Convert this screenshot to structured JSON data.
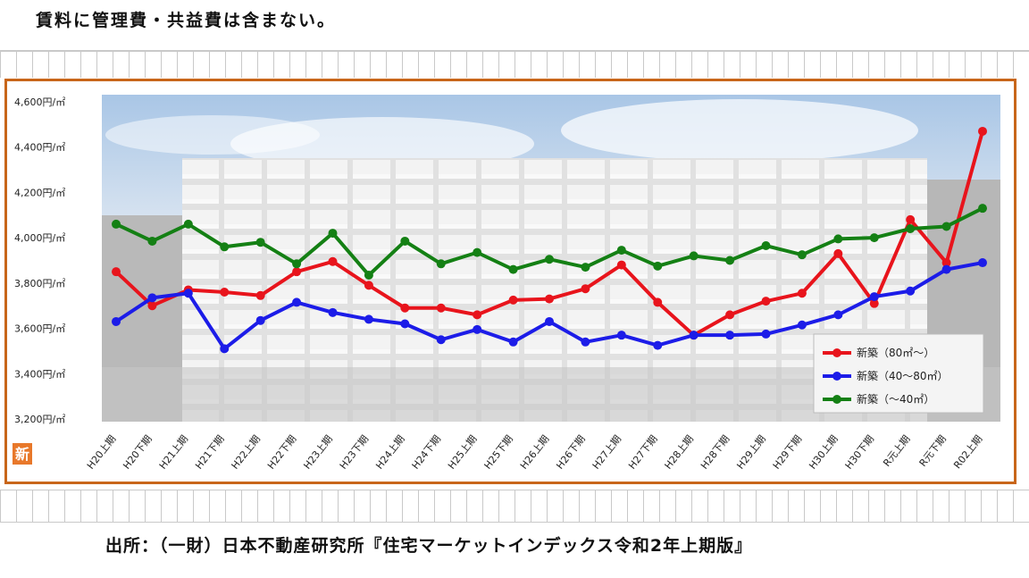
{
  "note": "賃料に管理費・共益費は含まない。",
  "source": "出所：（一財）日本不動産研究所『住宅マーケットインデックス令和2年上期版』",
  "logo_text": "新",
  "colors": {
    "frame": "#c8661a",
    "red": "#e8141c",
    "blue": "#1c1ce8",
    "green": "#148014"
  },
  "chart_data": {
    "type": "line",
    "categories": [
      "H20上期",
      "H20下期",
      "H21上期",
      "H21下期",
      "H22上期",
      "H22下期",
      "H23上期",
      "H23下期",
      "H24上期",
      "H24下期",
      "H25上期",
      "H25下期",
      "H26上期",
      "H26下期",
      "H27上期",
      "H27下期",
      "H28上期",
      "H28下期",
      "H29上期",
      "H29下期",
      "H30上期",
      "H30下期",
      "R元上期",
      "R元下期",
      "R02上期"
    ],
    "ylim": [
      3200,
      4600
    ],
    "yticks": [
      {
        "value": 4600,
        "label": "4,600円/㎡"
      },
      {
        "value": 4400,
        "label": "4,400円/㎡"
      },
      {
        "value": 4200,
        "label": "4,200円/㎡"
      },
      {
        "value": 4000,
        "label": "4,000円/㎡"
      },
      {
        "value": 3800,
        "label": "3,800円/㎡"
      },
      {
        "value": 3600,
        "label": "3,600円/㎡"
      },
      {
        "value": 3400,
        "label": "3,400円/㎡"
      },
      {
        "value": 3200,
        "label": "3,200円/㎡"
      }
    ],
    "legend_position": "bottom-right",
    "series": [
      {
        "name": "新築（80㎡～）",
        "color": "#e8141c",
        "values": [
          3850,
          3700,
          3770,
          3760,
          3745,
          3850,
          3895,
          3790,
          3690,
          3690,
          3660,
          3725,
          3730,
          3775,
          3880,
          3715,
          3570,
          3660,
          3720,
          3755,
          3930,
          3710,
          4080,
          3890,
          4470
        ]
      },
      {
        "name": "新築（40～80㎡）",
        "color": "#1c1ce8",
        "values": [
          3630,
          3735,
          3755,
          3510,
          3635,
          3715,
          3670,
          3640,
          3620,
          3550,
          3595,
          3540,
          3630,
          3540,
          3570,
          3525,
          3570,
          3570,
          3575,
          3615,
          3660,
          3740,
          3765,
          3860,
          3890
        ]
      },
      {
        "name": "新築（～40㎡）",
        "color": "#148014",
        "values": [
          4060,
          3985,
          4060,
          3960,
          3980,
          3885,
          4020,
          3835,
          3985,
          3885,
          3935,
          3860,
          3905,
          3870,
          3945,
          3875,
          3920,
          3900,
          3965,
          3925,
          3995,
          4000,
          4040,
          4050,
          4130
        ]
      }
    ]
  }
}
